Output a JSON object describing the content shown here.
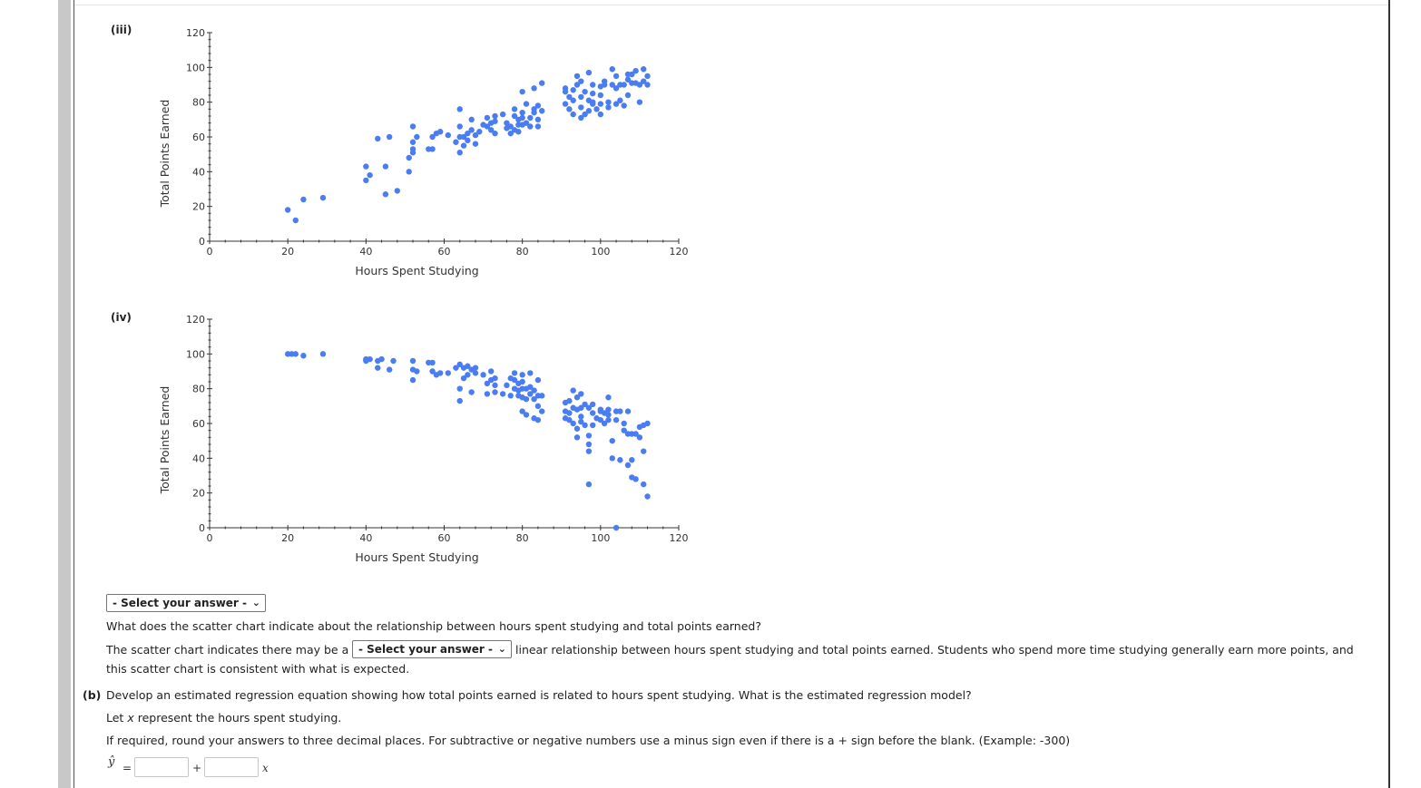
{
  "plots": [
    {
      "label": "(iii)",
      "chart_data": {
        "type": "scatter",
        "xlabel": "Hours Spent Studying",
        "ylabel": "Total Points Earned",
        "xlim": [
          0,
          120
        ],
        "ylim": [
          0,
          120
        ],
        "xticks": [
          "0",
          "20",
          "40",
          "60",
          "80",
          "100",
          "120"
        ],
        "yticks": [
          "0",
          "20",
          "40",
          "60",
          "80",
          "100",
          "120"
        ],
        "color": "#4a7cf2",
        "points": [
          [
            20,
            18
          ],
          [
            22,
            12
          ],
          [
            24,
            24
          ],
          [
            29,
            25
          ],
          [
            40,
            35
          ],
          [
            40,
            43
          ],
          [
            41,
            38
          ],
          [
            43,
            59
          ],
          [
            45,
            27
          ],
          [
            45,
            43
          ],
          [
            46,
            60
          ],
          [
            48,
            29
          ],
          [
            51,
            40
          ],
          [
            51,
            48
          ],
          [
            52,
            51
          ],
          [
            52,
            53
          ],
          [
            52,
            57
          ],
          [
            52,
            66
          ],
          [
            53,
            60
          ],
          [
            56,
            53
          ],
          [
            57,
            53
          ],
          [
            57,
            60
          ],
          [
            58,
            62
          ],
          [
            59,
            63
          ],
          [
            61,
            61
          ],
          [
            63,
            57
          ],
          [
            64,
            51
          ],
          [
            64,
            60
          ],
          [
            64,
            66
          ],
          [
            64,
            76
          ],
          [
            65,
            55
          ],
          [
            65,
            60
          ],
          [
            66,
            62
          ],
          [
            66,
            58
          ],
          [
            67,
            70
          ],
          [
            67,
            64
          ],
          [
            68,
            56
          ],
          [
            68,
            61
          ],
          [
            69,
            63
          ],
          [
            70,
            67
          ],
          [
            71,
            66
          ],
          [
            71,
            71
          ],
          [
            72,
            68
          ],
          [
            72,
            64
          ],
          [
            73,
            69
          ],
          [
            73,
            62
          ],
          [
            73,
            72
          ],
          [
            75,
            73
          ],
          [
            76,
            68
          ],
          [
            76,
            65
          ],
          [
            77,
            66
          ],
          [
            77,
            62
          ],
          [
            78,
            64
          ],
          [
            78,
            72
          ],
          [
            78,
            76
          ],
          [
            79,
            70
          ],
          [
            79,
            67
          ],
          [
            79,
            63
          ],
          [
            80,
            71
          ],
          [
            80,
            67
          ],
          [
            80,
            74
          ],
          [
            80,
            86
          ],
          [
            81,
            68
          ],
          [
            81,
            79
          ],
          [
            82,
            71
          ],
          [
            82,
            66
          ],
          [
            83,
            74
          ],
          [
            83,
            76
          ],
          [
            83,
            88
          ],
          [
            84,
            70
          ],
          [
            84,
            66
          ],
          [
            84,
            78
          ],
          [
            85,
            75
          ],
          [
            85,
            91
          ],
          [
            91,
            79
          ],
          [
            91,
            86
          ],
          [
            91,
            88
          ],
          [
            92,
            76
          ],
          [
            92,
            83
          ],
          [
            93,
            73
          ],
          [
            93,
            81
          ],
          [
            93,
            87
          ],
          [
            94,
            90
          ],
          [
            94,
            95
          ],
          [
            95,
            83
          ],
          [
            95,
            77
          ],
          [
            95,
            71
          ],
          [
            95,
            92
          ],
          [
            96,
            73
          ],
          [
            96,
            86
          ],
          [
            97,
            81
          ],
          [
            97,
            75
          ],
          [
            97,
            97
          ],
          [
            98,
            80
          ],
          [
            98,
            90
          ],
          [
            98,
            85
          ],
          [
            98,
            79
          ],
          [
            99,
            76
          ],
          [
            100,
            89
          ],
          [
            100,
            73
          ],
          [
            100,
            79
          ],
          [
            100,
            84
          ],
          [
            101,
            90
          ],
          [
            101,
            92
          ],
          [
            102,
            77
          ],
          [
            102,
            80
          ],
          [
            103,
            90
          ],
          [
            103,
            99
          ],
          [
            104,
            95
          ],
          [
            104,
            79
          ],
          [
            104,
            88
          ],
          [
            105,
            90
          ],
          [
            105,
            81
          ],
          [
            106,
            90
          ],
          [
            106,
            78
          ],
          [
            107,
            93
          ],
          [
            107,
            84
          ],
          [
            107,
            96
          ],
          [
            108,
            91
          ],
          [
            108,
            96
          ],
          [
            109,
            91
          ],
          [
            109,
            98
          ],
          [
            110,
            80
          ],
          [
            110,
            90
          ],
          [
            111,
            92
          ],
          [
            111,
            99
          ],
          [
            112,
            95
          ],
          [
            112,
            90
          ]
        ]
      }
    },
    {
      "label": "(iv)",
      "chart_data": {
        "type": "scatter",
        "xlabel": "Hours Spent Studying",
        "ylabel": "Total Points Earned",
        "xlim": [
          0,
          120
        ],
        "ylim": [
          0,
          120
        ],
        "xticks": [
          "0",
          "20",
          "40",
          "60",
          "80",
          "100",
          "120"
        ],
        "yticks": [
          "0",
          "20",
          "40",
          "60",
          "80",
          "100",
          "120"
        ],
        "color": "#4a7cf2",
        "points": [
          [
            20,
            100
          ],
          [
            21,
            100
          ],
          [
            22,
            100
          ],
          [
            24,
            99
          ],
          [
            29,
            100
          ],
          [
            40,
            96
          ],
          [
            40,
            97
          ],
          [
            41,
            97
          ],
          [
            43,
            92
          ],
          [
            43,
            96
          ],
          [
            44,
            97
          ],
          [
            46,
            91
          ],
          [
            47,
            96
          ],
          [
            52,
            96
          ],
          [
            52,
            91
          ],
          [
            52,
            85
          ],
          [
            53,
            90
          ],
          [
            56,
            95
          ],
          [
            57,
            95
          ],
          [
            57,
            90
          ],
          [
            58,
            88
          ],
          [
            59,
            89
          ],
          [
            61,
            89
          ],
          [
            63,
            92
          ],
          [
            64,
            94
          ],
          [
            64,
            73
          ],
          [
            64,
            80
          ],
          [
            65,
            92
          ],
          [
            65,
            86
          ],
          [
            66,
            88
          ],
          [
            66,
            93
          ],
          [
            67,
            91
          ],
          [
            67,
            78
          ],
          [
            68,
            89
          ],
          [
            68,
            92
          ],
          [
            70,
            88
          ],
          [
            71,
            77
          ],
          [
            71,
            83
          ],
          [
            72,
            85
          ],
          [
            72,
            90
          ],
          [
            73,
            78
          ],
          [
            73,
            82
          ],
          [
            73,
            86
          ],
          [
            75,
            77
          ],
          [
            76,
            82
          ],
          [
            77,
            76
          ],
          [
            77,
            86
          ],
          [
            78,
            80
          ],
          [
            78,
            89
          ],
          [
            78,
            85
          ],
          [
            79,
            79
          ],
          [
            79,
            76
          ],
          [
            79,
            83
          ],
          [
            80,
            80
          ],
          [
            80,
            75
          ],
          [
            80,
            84
          ],
          [
            80,
            67
          ],
          [
            80,
            88
          ],
          [
            81,
            74
          ],
          [
            81,
            80
          ],
          [
            81,
            65
          ],
          [
            82,
            89
          ],
          [
            82,
            77
          ],
          [
            82,
            81
          ],
          [
            83,
            74
          ],
          [
            83,
            79
          ],
          [
            83,
            63
          ],
          [
            84,
            76
          ],
          [
            84,
            85
          ],
          [
            84,
            70
          ],
          [
            84,
            62
          ],
          [
            85,
            67
          ],
          [
            85,
            76
          ],
          [
            91,
            72
          ],
          [
            91,
            67
          ],
          [
            91,
            63
          ],
          [
            92,
            62
          ],
          [
            92,
            66
          ],
          [
            92,
            73
          ],
          [
            93,
            60
          ],
          [
            93,
            69
          ],
          [
            93,
            79
          ],
          [
            94,
            75
          ],
          [
            94,
            68
          ],
          [
            94,
            57
          ],
          [
            94,
            52
          ],
          [
            95,
            77
          ],
          [
            95,
            64
          ],
          [
            95,
            61
          ],
          [
            95,
            69
          ],
          [
            96,
            71
          ],
          [
            96,
            59
          ],
          [
            97,
            44
          ],
          [
            97,
            48
          ],
          [
            97,
            25
          ],
          [
            97,
            53
          ],
          [
            97,
            69
          ],
          [
            98,
            66
          ],
          [
            98,
            59
          ],
          [
            98,
            71
          ],
          [
            99,
            63
          ],
          [
            100,
            67
          ],
          [
            100,
            62
          ],
          [
            100,
            68
          ],
          [
            101,
            66
          ],
          [
            101,
            60
          ],
          [
            102,
            68
          ],
          [
            102,
            65
          ],
          [
            102,
            62
          ],
          [
            102,
            75
          ],
          [
            103,
            50
          ],
          [
            103,
            40
          ],
          [
            104,
            67
          ],
          [
            104,
            62
          ],
          [
            104,
            0
          ],
          [
            105,
            67
          ],
          [
            105,
            39
          ],
          [
            106,
            60
          ],
          [
            106,
            56
          ],
          [
            107,
            36
          ],
          [
            107,
            54
          ],
          [
            107,
            67
          ],
          [
            108,
            54
          ],
          [
            108,
            29
          ],
          [
            108,
            39
          ],
          [
            109,
            28
          ],
          [
            109,
            54
          ],
          [
            110,
            52
          ],
          [
            110,
            58
          ],
          [
            111,
            44
          ],
          [
            111,
            59
          ],
          [
            111,
            25
          ],
          [
            112,
            18
          ],
          [
            112,
            60
          ]
        ]
      }
    }
  ],
  "question": {
    "select_placeholder": "- Select your answer -",
    "part_a_prompt": "What does the scatter chart indicate about the relationship between hours spent studying and total points earned?",
    "part_a_line1_before": "The scatter chart indicates there may be a",
    "part_a_select": "- Select your answer -",
    "part_a_line1_after": "linear relationship between hours spent studying and total points earned. Students who spend more time studying generally earn more points, and",
    "part_a_line2": "this scatter chart is consistent with what is expected.",
    "part_b_label": "(b)",
    "part_b_prompt": "Develop an estimated regression equation showing how total points earned is related to hours spent studying. What is the estimated regression model?",
    "let_x_before": "Let",
    "let_x_var": "x",
    "let_x_after": "represent the hours spent studying.",
    "rounding_note": "If required, round your answers to three decimal places. For subtractive or negative numbers use a minus sign even if there is a + sign before the blank. (Example: -300)",
    "yhat": "ŷ",
    "equals": "=",
    "plus": "+",
    "x_var": "x",
    "intercept_value": "",
    "slope_value": ""
  },
  "colors": {
    "point": "#4a7cf2",
    "axis": "#333333"
  }
}
